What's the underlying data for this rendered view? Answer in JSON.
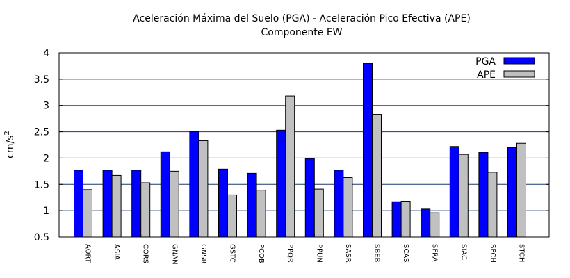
{
  "chart_data": {
    "type": "bar",
    "title": "Aceleración Máxima del Suelo (PGA) -  Aceleración Pico Efectiva (APE)",
    "subtitle": "Componente EW",
    "xlabel": "",
    "ylabel": "cm/s",
    "ylabel_superscript": "2",
    "ylim": [
      0.5,
      4
    ],
    "yticks": [
      0.5,
      1,
      1.5,
      2,
      2.5,
      3,
      3.5,
      4
    ],
    "grid": "horizontal",
    "legend_position": "top-right",
    "categories": [
      "AORT",
      "ASIA",
      "CORS",
      "GNAN",
      "GNSR",
      "GSTC",
      "PCOB",
      "PPQR",
      "PPUN",
      "SASR",
      "SBEB",
      "SCAS",
      "SFRA",
      "SIAC",
      "SPCH",
      "STCH"
    ],
    "series": [
      {
        "name": "PGA",
        "color": "#0000ff",
        "values": [
          1.77,
          1.77,
          1.77,
          2.12,
          2.5,
          1.79,
          1.71,
          2.53,
          1.99,
          1.77,
          3.8,
          1.17,
          1.03,
          2.22,
          2.11,
          2.2
        ]
      },
      {
        "name": "APE",
        "color": "#c0c0c0",
        "values": [
          1.4,
          1.67,
          1.53,
          1.75,
          2.33,
          1.3,
          1.39,
          3.18,
          1.41,
          1.63,
          2.83,
          1.18,
          0.96,
          2.07,
          1.73,
          2.28
        ]
      }
    ]
  }
}
